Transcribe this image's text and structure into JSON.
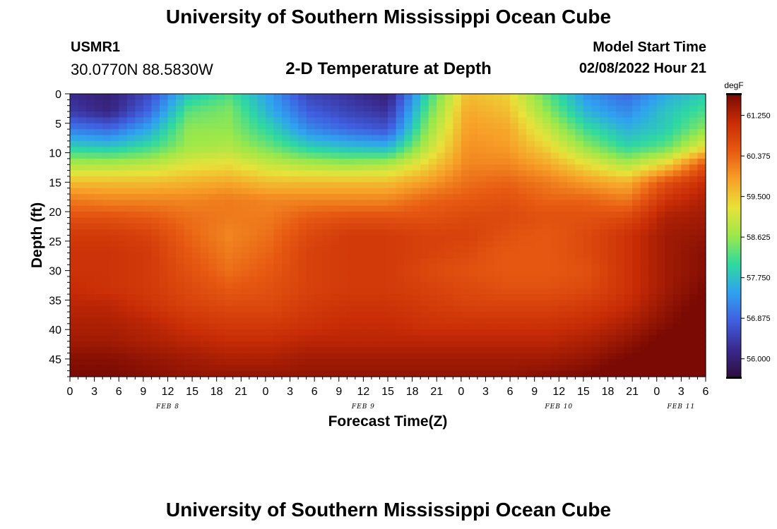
{
  "header": {
    "title": "University of Southern Mississippi Ocean Cube",
    "station": "USMR1",
    "coords": "30.0770N  88.5830W",
    "subtitle": "2-D Temperature at Depth",
    "model_start_label": "Model Start Time",
    "model_start_value": "02/08/2022 Hour 21"
  },
  "footer": {
    "title": "University of Southern Mississippi Ocean Cube"
  },
  "chart_data": {
    "type": "heatmap",
    "title": "2-D Temperature at Depth",
    "xlabel": "Forecast Time(Z)",
    "ylabel": "Depth (ft)",
    "x_hours": [
      0,
      3,
      6,
      9,
      12,
      15,
      18,
      21,
      24,
      27,
      30,
      33,
      36,
      39,
      42,
      45,
      48,
      51,
      54,
      57,
      60,
      63,
      66,
      69,
      72,
      75,
      78
    ],
    "x_tick_labels": [
      "0",
      "3",
      "6",
      "9",
      "12",
      "15",
      "18",
      "21",
      "0",
      "3",
      "6",
      "9",
      "12",
      "15",
      "18",
      "21",
      "0",
      "3",
      "6",
      "9",
      "12",
      "15",
      "18",
      "21",
      "0",
      "3",
      "6"
    ],
    "date_labels": [
      {
        "label": "FEB 8",
        "hour": 12
      },
      {
        "label": "FEB 9",
        "hour": 36
      },
      {
        "label": "FEB 10",
        "hour": 60
      },
      {
        "label": "FEB 11",
        "hour": 75
      }
    ],
    "y_depth": [
      0,
      5,
      10,
      15,
      20,
      25,
      30,
      35,
      40,
      45
    ],
    "y_tick_labels": [
      "0",
      "5",
      "10",
      "15",
      "20",
      "25",
      "30",
      "35",
      "40",
      "45"
    ],
    "xlim": [
      0,
      78
    ],
    "ylim": [
      0,
      48
    ],
    "z": [
      [
        56.2,
        56.0,
        56.6,
        57.8,
        58.2,
        57.4,
        56.5,
        56.3,
        56.0,
        58.0,
        59.6,
        59.4,
        58.3,
        57.3,
        56.9,
        57.5,
        57.9
      ],
      [
        56.4,
        56.1,
        56.9,
        58.3,
        58.5,
        57.6,
        56.8,
        56.5,
        56.3,
        58.3,
        59.8,
        59.6,
        58.6,
        57.6,
        57.2,
        57.8,
        58.2
      ],
      [
        57.1,
        56.9,
        57.5,
        58.6,
        58.6,
        58.0,
        57.2,
        56.9,
        56.7,
        58.6,
        59.9,
        59.8,
        59.0,
        58.1,
        57.6,
        57.9,
        58.6
      ],
      [
        57.9,
        57.8,
        58.1,
        58.7,
        58.8,
        58.4,
        57.9,
        57.7,
        57.6,
        58.9,
        60.0,
        59.9,
        59.4,
        58.6,
        58.0,
        58.3,
        59.3
      ],
      [
        58.8,
        58.8,
        58.9,
        59.2,
        59.3,
        59.0,
        58.8,
        58.7,
        58.8,
        59.4,
        60.1,
        60.1,
        59.8,
        59.3,
        58.8,
        59.4,
        60.6
      ],
      [
        59.6,
        59.6,
        59.6,
        59.7,
        59.8,
        59.6,
        59.6,
        59.6,
        59.6,
        59.9,
        60.3,
        60.4,
        60.2,
        59.9,
        59.7,
        60.6,
        61.1
      ],
      [
        60.2,
        60.1,
        60.1,
        60.1,
        60.2,
        60.1,
        60.1,
        60.1,
        60.1,
        60.4,
        60.5,
        60.6,
        60.4,
        60.4,
        60.2,
        61.0,
        61.3
      ],
      [
        60.6,
        60.6,
        60.5,
        60.3,
        60.2,
        60.2,
        60.5,
        60.6,
        60.6,
        60.6,
        60.7,
        60.7,
        60.6,
        60.6,
        60.7,
        61.3,
        61.4
      ],
      [
        60.9,
        60.9,
        60.8,
        60.4,
        60.1,
        60.3,
        60.7,
        60.9,
        60.9,
        60.8,
        60.8,
        60.6,
        60.5,
        60.7,
        61.0,
        61.4,
        61.5
      ],
      [
        61.0,
        61.0,
        60.9,
        60.5,
        60.2,
        60.4,
        60.8,
        60.9,
        60.9,
        60.8,
        60.7,
        60.5,
        60.5,
        60.7,
        61.0,
        61.4,
        61.6
      ],
      [
        61.0,
        61.0,
        60.9,
        60.6,
        60.3,
        60.5,
        60.8,
        60.9,
        60.9,
        60.7,
        60.6,
        60.5,
        60.5,
        60.6,
        61.0,
        61.4,
        61.6
      ],
      [
        61.1,
        61.0,
        60.9,
        60.7,
        60.5,
        60.6,
        60.8,
        60.9,
        60.9,
        60.8,
        60.7,
        60.6,
        60.6,
        60.7,
        61.0,
        61.4,
        61.7
      ],
      [
        61.2,
        61.2,
        61.0,
        60.8,
        60.7,
        60.7,
        60.9,
        61.0,
        61.0,
        60.9,
        60.8,
        60.8,
        60.8,
        60.9,
        61.1,
        61.5,
        61.8
      ],
      [
        61.3,
        61.3,
        61.2,
        61.0,
        60.9,
        60.9,
        61.0,
        61.1,
        61.1,
        61.0,
        61.0,
        61.0,
        61.0,
        61.1,
        61.3,
        61.6,
        61.9
      ],
      [
        61.4,
        61.4,
        61.3,
        61.2,
        61.1,
        61.1,
        61.2,
        61.2,
        61.2,
        61.2,
        61.2,
        61.2,
        61.2,
        61.3,
        61.5,
        61.8,
        62.0
      ],
      [
        61.6,
        61.6,
        61.5,
        61.4,
        61.3,
        61.3,
        61.4,
        61.4,
        61.4,
        61.4,
        61.4,
        61.4,
        61.4,
        61.5,
        61.7,
        61.9,
        62.1
      ],
      [
        61.7,
        61.7,
        61.6,
        61.5,
        61.5,
        61.5,
        61.5,
        61.5,
        61.5,
        61.5,
        61.5,
        61.5,
        61.6,
        61.7,
        61.9,
        62.1,
        62.3
      ]
    ],
    "z_rows_depth_ft": [
      0,
      3,
      6,
      9,
      12,
      15,
      18,
      21,
      24,
      27,
      30,
      33,
      36,
      39,
      42,
      45,
      48
    ],
    "z_cols_hour": [
      0,
      4.875,
      9.75,
      14.625,
      19.5,
      24.375,
      29.25,
      34.125,
      39,
      43.875,
      48.75,
      53.625,
      58.5,
      63.375,
      68.25,
      73.125,
      78
    ],
    "colorbar": {
      "unit": "degF",
      "min": 55.6,
      "max": 61.7,
      "ticks": [
        "61.250",
        "60.375",
        "59.500",
        "58.625",
        "57.750",
        "56.875",
        "56.000"
      ],
      "tick_values": [
        61.25,
        60.375,
        59.5,
        58.625,
        57.75,
        56.875,
        56.0
      ],
      "colors": [
        "#2b0f3e",
        "#3a2a8e",
        "#3f5fe0",
        "#2fa2f0",
        "#2fd9a0",
        "#9be84a",
        "#e8e23a",
        "#f7a028",
        "#e75a12",
        "#c82c06",
        "#7a0a03"
      ]
    }
  }
}
